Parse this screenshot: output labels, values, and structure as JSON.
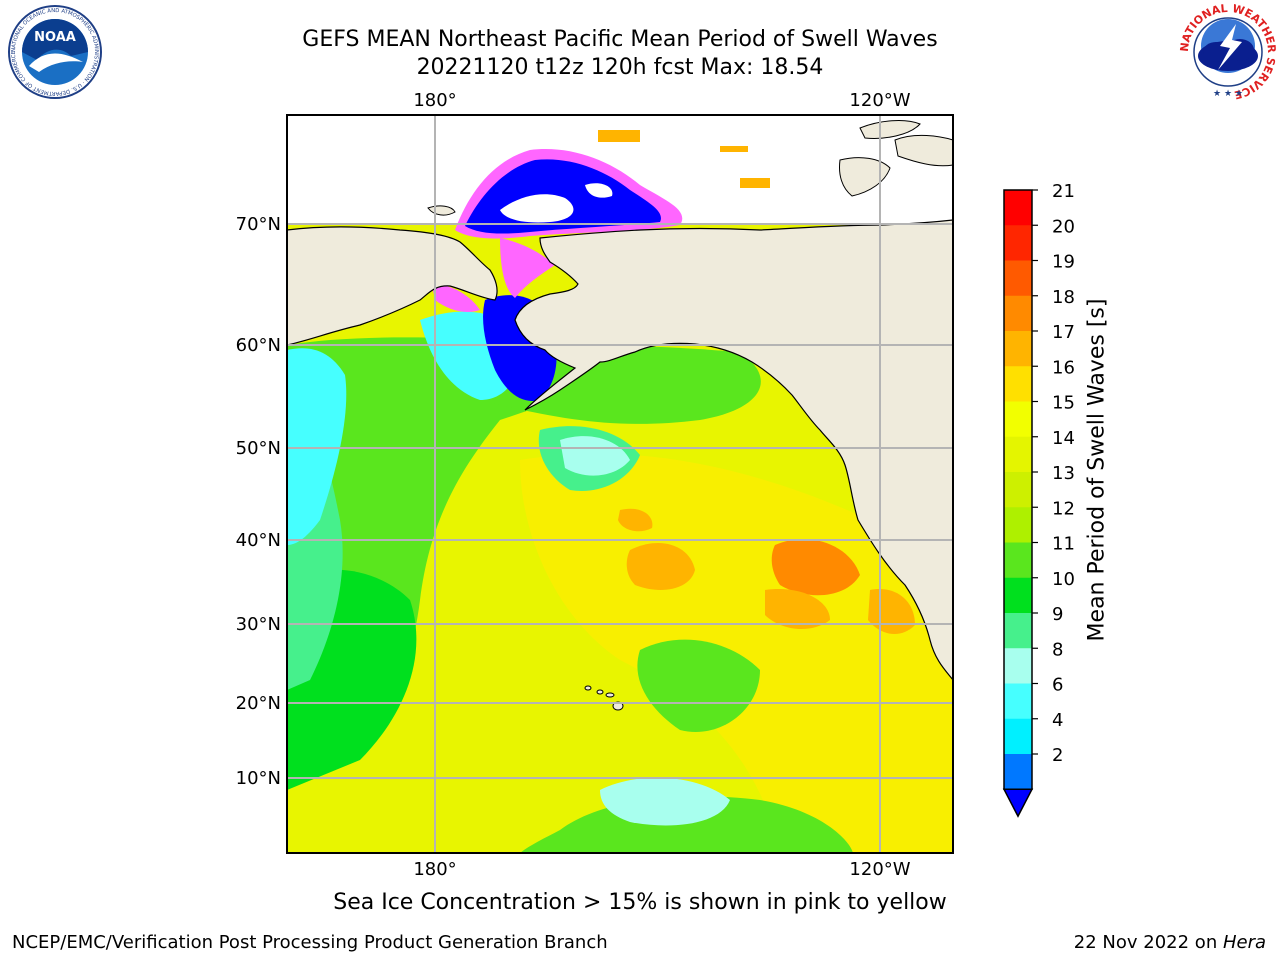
{
  "header": {
    "title_line1": "GEFS MEAN Northeast Pacific Mean Period of Swell Waves",
    "title_line2": "20221120 t12z 120h fcst   Max: 18.54"
  },
  "logos": {
    "left": {
      "name": "noaa-logo",
      "text": "NOAA",
      "ring_text": "NATIONAL OCEANIC AND ATMOSPHERIC ADMINISTRATION · U.S. DEPARTMENT OF COMMERCE"
    },
    "right": {
      "name": "nws-logo",
      "ring_text": "NATIONAL WEATHER SERVICE"
    }
  },
  "map": {
    "region": "Northeast Pacific",
    "lon_labels": [
      "180°",
      "120°W"
    ],
    "lat_labels": [
      "70°N",
      "60°N",
      "50°N",
      "40°N",
      "30°N",
      "20°N",
      "10°N"
    ],
    "colors": {
      "land": "#efebdc",
      "grid": "#b4b4b4",
      "coast": "#000000"
    }
  },
  "colorbar": {
    "title": "Mean Period of Swell Waves [s]",
    "ticks": [
      "21",
      "20",
      "19",
      "18",
      "17",
      "16",
      "15",
      "14",
      "13",
      "12",
      "11",
      "10",
      "9",
      "8",
      "6",
      "4",
      "2"
    ],
    "colors": [
      "#ff0000",
      "#ff2600",
      "#ff5a00",
      "#ff8a00",
      "#ffb400",
      "#ffe000",
      "#f2ff00",
      "#e4f500",
      "#cdf000",
      "#aef000",
      "#5ae61e",
      "#00e01e",
      "#46f08c",
      "#a8ffee",
      "#46ffff",
      "#00f0ff",
      "#0078ff"
    ],
    "under_color": "#0000ff",
    "extend": "min"
  },
  "footnote": "Sea Ice Concentration > 15% is shown in pink to yellow",
  "footer": {
    "left": "NCEP/EMC/Verification Post Processing Product Generation Branch",
    "right_date": "22 Nov 2022 on ",
    "right_machine": "Hera"
  }
}
